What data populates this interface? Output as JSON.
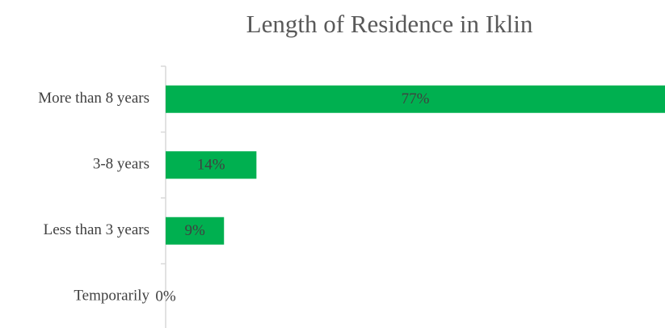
{
  "chart_data": {
    "type": "hbar",
    "title": "Length of Residence in Iklin",
    "categories": [
      "More than 8 years",
      "3-8 years",
      "Less than 3 years",
      "Temporarily"
    ],
    "values": [
      77,
      14,
      9,
      0
    ],
    "value_labels": [
      "77%",
      "14%",
      "9%",
      "0%"
    ],
    "color": "#00b050"
  }
}
